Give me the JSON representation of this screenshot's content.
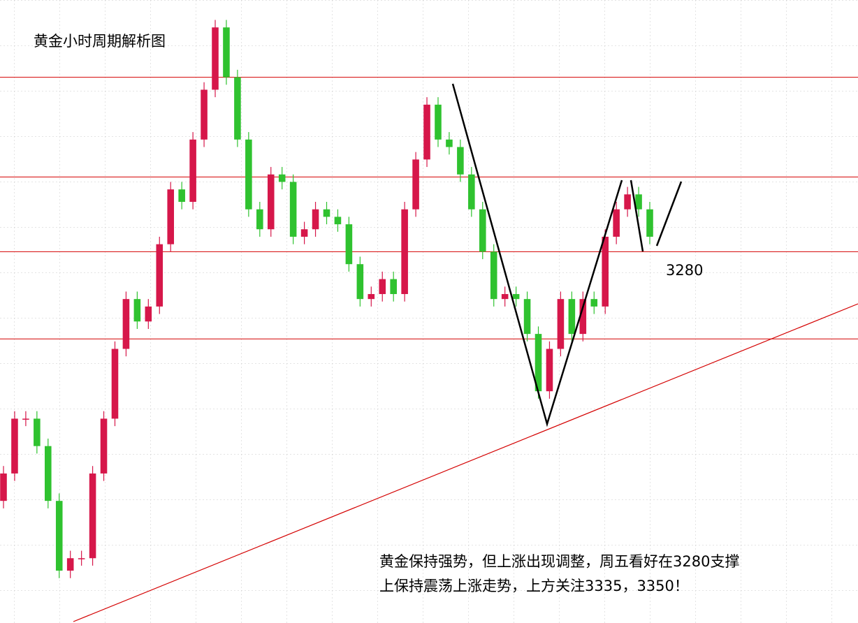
{
  "chart_data": {
    "type": "candlestick",
    "title": "黄金小时周期解析图",
    "level_label": "3280",
    "annotation": [
      "黄金保持强势，但上涨出现调整，周五看好在3280支撑",
      "上保持震荡上涨走势，上方关注3335，3350！"
    ],
    "up_color": "#d6174a",
    "down_color": "#2fc22f",
    "level_color": "#d40000",
    "ylim": [
      3131,
      3381
    ],
    "levels": [
      3350,
      3310,
      3280,
      3245
    ],
    "open": [
      3180,
      3191,
      3213,
      3213,
      3202,
      3180,
      3152,
      3157,
      3157,
      3191,
      3213,
      3241,
      3261,
      3252,
      3258,
      3283,
      3305,
      3300,
      3325,
      3345,
      3370,
      3350,
      3325,
      3297,
      3289,
      3311,
      3308,
      3286,
      3289,
      3297,
      3294,
      3291,
      3275,
      3261,
      3263,
      3269,
      3263,
      3297,
      3317,
      3339,
      3325,
      3322,
      3311,
      3297,
      3280,
      3261,
      3263,
      3261,
      3247,
      3224,
      3241,
      3261,
      3247,
      3261,
      3258,
      3286,
      3297,
      3303,
      3297
    ],
    "high": [
      3194,
      3216,
      3216,
      3216,
      3205,
      3183,
      3160,
      3160,
      3194,
      3216,
      3244,
      3264,
      3264,
      3261,
      3286,
      3308,
      3308,
      3328,
      3348,
      3373,
      3373,
      3353,
      3328,
      3300,
      3314,
      3314,
      3311,
      3292,
      3300,
      3300,
      3297,
      3294,
      3278,
      3266,
      3272,
      3272,
      3300,
      3320,
      3342,
      3342,
      3328,
      3325,
      3314,
      3300,
      3283,
      3266,
      3266,
      3264,
      3250,
      3244,
      3264,
      3264,
      3264,
      3264,
      3289,
      3300,
      3306,
      3306,
      3300
    ],
    "low": [
      3177,
      3188,
      3210,
      3199,
      3177,
      3149,
      3149,
      3154,
      3154,
      3188,
      3210,
      3238,
      3249,
      3249,
      3255,
      3280,
      3297,
      3297,
      3322,
      3342,
      3347,
      3322,
      3294,
      3286,
      3286,
      3305,
      3283,
      3283,
      3286,
      3291,
      3288,
      3272,
      3258,
      3258,
      3260,
      3260,
      3260,
      3294,
      3314,
      3322,
      3319,
      3308,
      3294,
      3277,
      3258,
      3258,
      3258,
      3244,
      3221,
      3221,
      3238,
      3244,
      3244,
      3255,
      3255,
      3283,
      3294,
      3294,
      3283
    ],
    "close": [
      3191,
      3213,
      3213,
      3202,
      3180,
      3152,
      3157,
      3157,
      3191,
      3213,
      3241,
      3261,
      3252,
      3258,
      3283,
      3305,
      3300,
      3325,
      3345,
      3370,
      3350,
      3325,
      3297,
      3289,
      3311,
      3308,
      3286,
      3289,
      3297,
      3294,
      3291,
      3275,
      3261,
      3263,
      3269,
      3263,
      3297,
      3317,
      3339,
      3325,
      3322,
      3311,
      3297,
      3280,
      3261,
      3263,
      3261,
      3247,
      3224,
      3241,
      3261,
      3247,
      3261,
      3258,
      3286,
      3297,
      3303,
      3297,
      3286
    ]
  }
}
